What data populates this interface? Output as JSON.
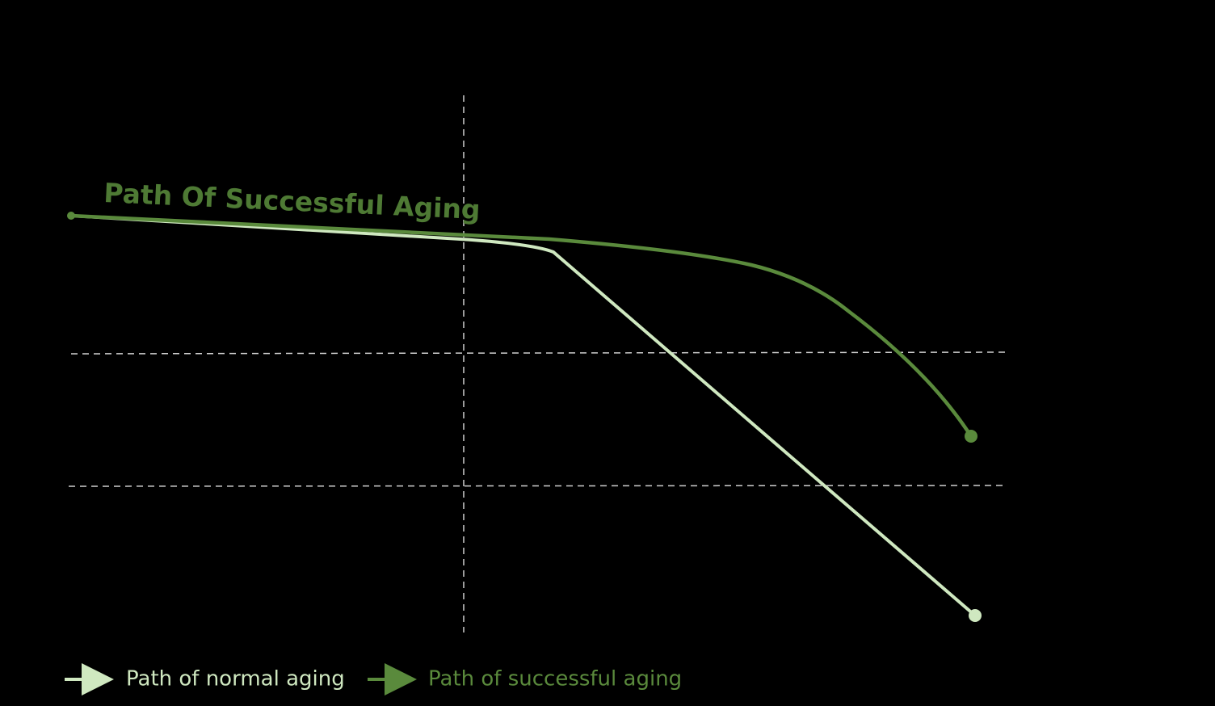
{
  "annotation": "Path Of Successful Aging",
  "legend": [
    {
      "label": "Path of normal aging"
    },
    {
      "label": "Path of successful aging"
    }
  ]
}
